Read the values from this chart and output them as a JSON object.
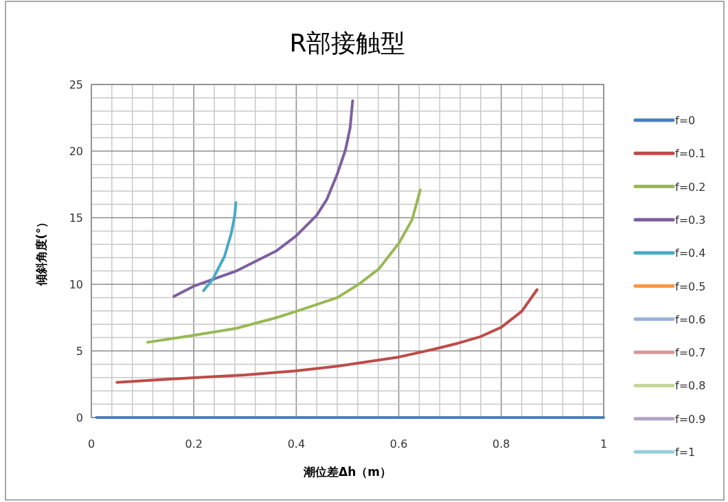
{
  "chart_data": {
    "type": "line",
    "title": "R部接触型",
    "xlabel": "潮位差Δh（m）",
    "ylabel": "傾斜角度(°）",
    "xlim": [
      0,
      1
    ],
    "xticks": [
      0,
      0.2,
      0.4,
      0.6,
      0.8,
      1
    ],
    "ylim": [
      0,
      25
    ],
    "yticks": [
      0,
      5,
      10,
      15,
      20,
      25
    ],
    "grid": true,
    "legend": "right",
    "marker": "none",
    "line_style": "solid",
    "series": [
      {
        "name": "f=0",
        "color": "#4a7ebb",
        "x": [
          0.01,
          1.0
        ],
        "values": [
          0,
          0
        ]
      },
      {
        "name": "f=0.1",
        "color": "#be4b48",
        "x": [
          0.05,
          0.2,
          0.3,
          0.4,
          0.48,
          0.6,
          0.67,
          0.715,
          0.76,
          0.8,
          0.84,
          0.87
        ],
        "values": [
          2.64,
          2.99,
          3.2,
          3.5,
          3.85,
          4.54,
          5.14,
          5.57,
          6.08,
          6.77,
          7.97,
          9.6
        ]
      },
      {
        "name": "f=0.2",
        "color": "#98b954",
        "x": [
          0.11,
          0.2,
          0.282,
          0.358,
          0.4,
          0.48,
          0.523,
          0.561,
          0.601,
          0.626,
          0.642
        ],
        "values": [
          5.65,
          6.17,
          6.69,
          7.46,
          7.97,
          9.0,
          10.03,
          11.15,
          13.13,
          14.85,
          17.08
        ]
      },
      {
        "name": "f=0.3",
        "color": "#7d60a0",
        "x": [
          0.161,
          0.2,
          0.282,
          0.362,
          0.4,
          0.44,
          0.46,
          0.48,
          0.496,
          0.505,
          0.51
        ],
        "values": [
          9.09,
          9.86,
          10.98,
          12.53,
          13.64,
          15.19,
          16.4,
          18.28,
          20.09,
          21.72,
          23.78
        ]
      },
      {
        "name": "f=0.4",
        "color": "#46aac5",
        "x": [
          0.219,
          0.237,
          0.26,
          0.273,
          0.28,
          0.282
        ],
        "values": [
          9.52,
          10.38,
          12.1,
          13.81,
          15.19,
          16.13
        ]
      },
      {
        "name": "f=0.5",
        "color": "#f79646"
      },
      {
        "name": "f=0.6",
        "color": "#95b3d7"
      },
      {
        "name": "f=0.7",
        "color": "#d99694"
      },
      {
        "name": "f=0.8",
        "color": "#c3d69b"
      },
      {
        "name": "f=0.9",
        "color": "#b3a2c7"
      },
      {
        "name": "f=1",
        "color": "#93cddd"
      }
    ]
  }
}
